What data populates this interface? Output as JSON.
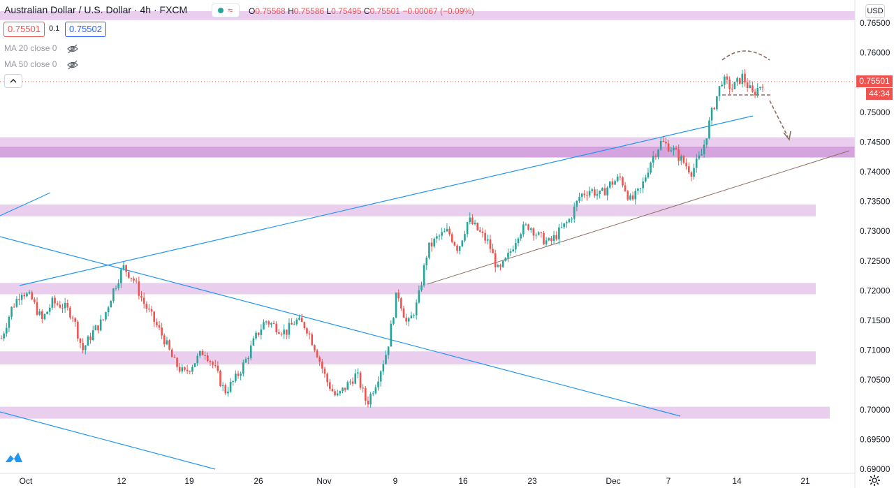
{
  "header": {
    "title": "Australian Dollar / U.S. Dollar · 4h · FXCM",
    "open_label": "O",
    "open": "0.75568",
    "high_label": "H",
    "high": "0.75586",
    "low_label": "L",
    "low": "0.75495",
    "close_label": "C",
    "close": "0.75501",
    "change": "−0.00067 (−0.09%)",
    "status_wave_glyph": "≈"
  },
  "quote": {
    "bid": "0.75501",
    "spread": "0.1",
    "ask": "0.75502"
  },
  "indicators": [
    {
      "label": "MA 20 close 0",
      "icon": "eye-crossed-icon"
    },
    {
      "label": "MA 50 close 0",
      "icon": "eye-crossed-icon"
    }
  ],
  "price_axis": {
    "currency": "USD",
    "last_price": "0.75501",
    "countdown": "44:34"
  },
  "colors": {
    "up": "#26a69a",
    "down": "#ef5350",
    "zone": "#e1bee7",
    "zone_strong": "#ce93d8",
    "trendline": "#2196f3",
    "support_line": "#8d6e63"
  },
  "chart_data": {
    "type": "candlestick",
    "symbol": "AUDUSD",
    "interval": "4h",
    "ylim": [
      0.6895,
      0.7668
    ],
    "y_ticks": [
      "0.76500",
      "0.76000",
      "0.75500",
      "0.75000",
      "0.74500",
      "0.74000",
      "0.73500",
      "0.73000",
      "0.72500",
      "0.72000",
      "0.71500",
      "0.71000",
      "0.70500",
      "0.70000",
      "0.69500",
      "0.69000"
    ],
    "x_ticks": [
      "Oct",
      "12",
      "19",
      "26",
      "Nov",
      "9",
      "16",
      "23",
      "Dec",
      "7",
      "14",
      "21"
    ],
    "grid": false,
    "close_path": [
      [
        0.712,
        0.717,
        0.72,
        0.7185,
        0.715,
        0.718,
        0.7175,
        0.716,
        0.71,
        0.713,
        0.715,
        0.72,
        0.724,
        0.722,
        0.718,
        0.715,
        0.712,
        0.708,
        0.706,
        0.708,
        0.71,
        0.707,
        0.703,
        0.705,
        0.708,
        0.712,
        0.715,
        0.714,
        0.713,
        0.715,
        0.714,
        0.71,
        0.705,
        0.702,
        0.704,
        0.706,
        0.701,
        0.705,
        0.71,
        0.72,
        0.714,
        0.718,
        0.727,
        0.729,
        0.73,
        0.727,
        0.732,
        0.73,
        0.728,
        0.723,
        0.726,
        0.73,
        0.731,
        0.729,
        0.728,
        0.73,
        0.732,
        0.736,
        0.737,
        0.736,
        0.738,
        0.739,
        0.735,
        0.737,
        0.742,
        0.745,
        0.744,
        0.742,
        0.74,
        0.743,
        0.75,
        0.7555,
        0.754,
        0.756,
        0.753,
        0.755
      ]
    ],
    "zones": [
      {
        "y_from": 0.767,
        "y_to": 0.7655
      },
      {
        "y_from": 0.7458,
        "y_to": 0.744
      },
      {
        "y_from": 0.7442,
        "y_to": 0.7424
      },
      {
        "y_from": 0.7345,
        "y_to": 0.7325
      },
      {
        "y_from": 0.7213,
        "y_to": 0.7194
      },
      {
        "y_from": 0.7098,
        "y_to": 0.7076
      },
      {
        "y_from": 0.7005,
        "y_to": 0.6985
      }
    ]
  }
}
